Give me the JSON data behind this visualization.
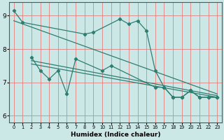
{
  "xlabel": "Humidex (Indice chaleur)",
  "background_color": "#cce8e6",
  "grid_color": "#f0a0a0",
  "line_color": "#2e7d72",
  "xlim": [
    -0.5,
    23.5
  ],
  "ylim": [
    5.8,
    9.4
  ],
  "yticks": [
    6,
    7,
    8,
    9
  ],
  "xticks": [
    0,
    1,
    2,
    3,
    4,
    5,
    6,
    7,
    8,
    9,
    10,
    11,
    12,
    13,
    14,
    15,
    16,
    17,
    18,
    19,
    20,
    21,
    22,
    23
  ],
  "series1_x": [
    0,
    1,
    8,
    9,
    12,
    13,
    14,
    15,
    16,
    17,
    18,
    19,
    20,
    21,
    22,
    23
  ],
  "series1_y": [
    9.15,
    8.8,
    8.45,
    8.5,
    8.9,
    8.75,
    8.85,
    8.55,
    7.35,
    6.85,
    6.55,
    6.55,
    6.75,
    6.55,
    6.55,
    6.55
  ],
  "series2_x": [
    2,
    3,
    4,
    5,
    6,
    7,
    10,
    11,
    16,
    17,
    18,
    19,
    20,
    21,
    22,
    23
  ],
  "series2_y": [
    7.75,
    7.35,
    7.1,
    7.35,
    6.65,
    7.7,
    7.35,
    7.5,
    6.85,
    6.85,
    6.55,
    6.55,
    6.75,
    6.55,
    6.55,
    6.55
  ],
  "trend1_x": [
    0,
    23
  ],
  "trend1_y": [
    8.85,
    6.65
  ],
  "trend2_x": [
    2,
    23
  ],
  "trend2_y": [
    7.65,
    6.6
  ],
  "trend3_x": [
    2,
    23
  ],
  "trend3_y": [
    7.55,
    6.55
  ]
}
